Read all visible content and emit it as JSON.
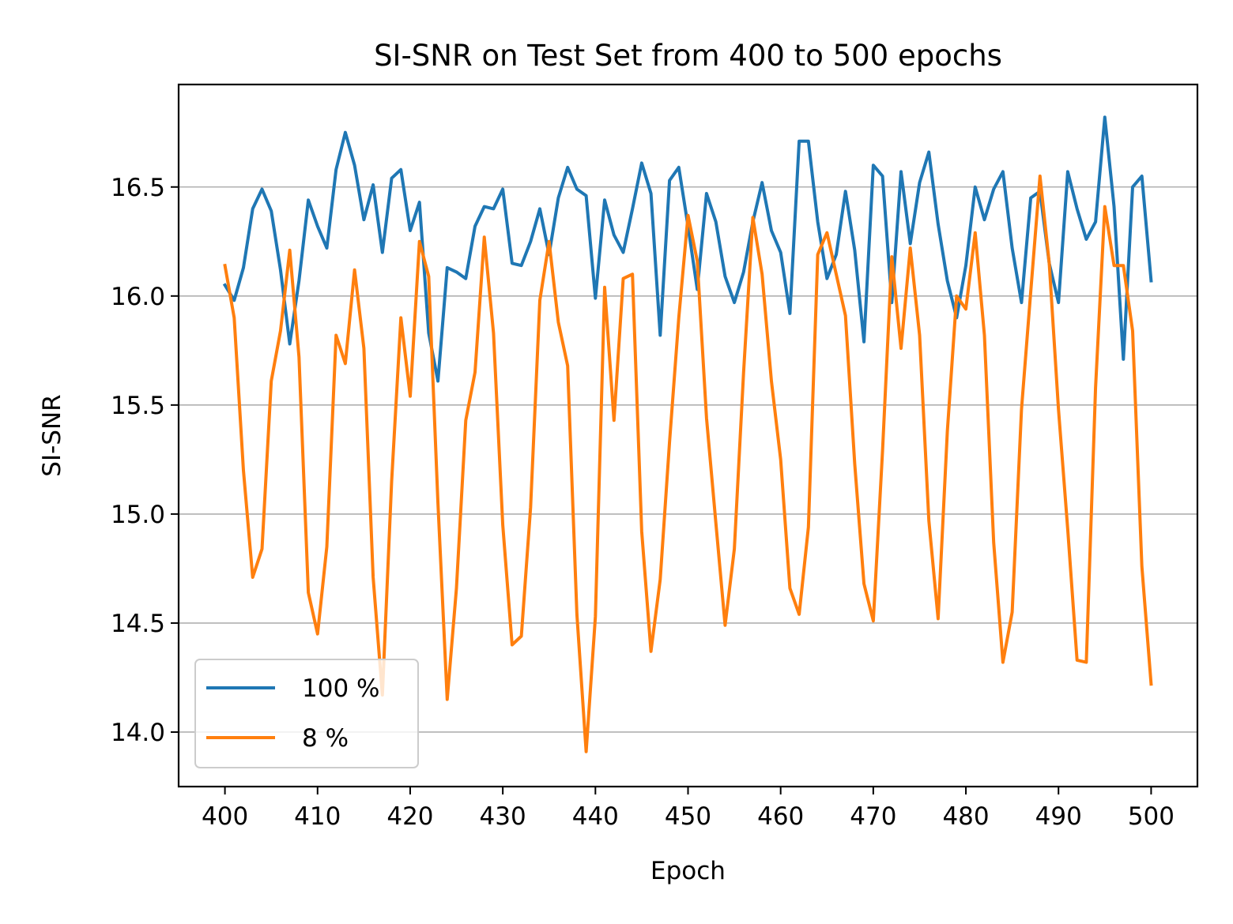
{
  "chart_data": {
    "type": "line",
    "title": "SI-SNR on Test Set from 400 to 500 epochs",
    "xlabel": "Epoch",
    "ylabel": "SI-SNR",
    "xlim": [
      395,
      505
    ],
    "ylim": [
      13.75,
      16.97
    ],
    "xticks": [
      400,
      410,
      420,
      430,
      440,
      450,
      460,
      470,
      480,
      490,
      500
    ],
    "yticks": [
      14.0,
      14.5,
      15.0,
      15.5,
      16.0,
      16.5
    ],
    "ytick_labels": [
      "14.0",
      "14.5",
      "15.0",
      "15.5",
      "16.0",
      "16.5"
    ],
    "grid": "y",
    "legend_position": "lower-left",
    "x_start": 400,
    "x_step": 1,
    "series": [
      {
        "name": "100 %",
        "color": "#1f77b4",
        "values": [
          16.05,
          15.98,
          16.13,
          16.4,
          16.49,
          16.39,
          16.12,
          15.78,
          16.07,
          16.44,
          16.32,
          16.22,
          16.58,
          16.75,
          16.6,
          16.35,
          16.51,
          16.2,
          16.54,
          16.58,
          16.3,
          16.43,
          15.83,
          15.61,
          16.13,
          16.11,
          16.08,
          16.32,
          16.41,
          16.4,
          16.49,
          16.15,
          16.14,
          16.25,
          16.4,
          16.19,
          16.45,
          16.59,
          16.49,
          16.46,
          15.99,
          16.44,
          16.28,
          16.2,
          16.4,
          16.61,
          16.47,
          15.82,
          16.53,
          16.59,
          16.32,
          16.03,
          16.47,
          16.34,
          16.09,
          15.97,
          16.11,
          16.34,
          16.52,
          16.3,
          16.2,
          15.92,
          16.71,
          16.71,
          16.34,
          16.08,
          16.19,
          16.48,
          16.21,
          15.79,
          16.6,
          16.55,
          15.97,
          16.57,
          16.24,
          16.52,
          16.66,
          16.33,
          16.07,
          15.9,
          16.14,
          16.5,
          16.35,
          16.49,
          16.57,
          16.22,
          15.97,
          16.45,
          16.48,
          16.15,
          15.97,
          16.57,
          16.4,
          16.26,
          16.34,
          16.82,
          16.41,
          15.71,
          16.5,
          16.55,
          16.07
        ]
      },
      {
        "name": "8 %",
        "color": "#ff7f0e",
        "values": [
          16.14,
          15.9,
          15.2,
          14.71,
          14.84,
          15.61,
          15.84,
          16.21,
          15.72,
          14.64,
          14.45,
          14.85,
          15.82,
          15.69,
          16.12,
          15.76,
          14.71,
          14.17,
          15.15,
          15.9,
          15.54,
          16.25,
          16.09,
          15.05,
          14.15,
          14.66,
          15.43,
          15.65,
          16.27,
          15.83,
          14.95,
          14.4,
          14.44,
          15.03,
          15.98,
          16.25,
          15.88,
          15.68,
          14.54,
          13.91,
          14.53,
          16.04,
          15.43,
          16.08,
          16.1,
          14.92,
          14.37,
          14.7,
          15.33,
          15.9,
          16.37,
          16.16,
          15.44,
          14.96,
          14.49,
          14.84,
          15.65,
          16.36,
          16.1,
          15.61,
          15.25,
          14.66,
          14.54,
          14.94,
          16.19,
          16.29,
          16.1,
          15.91,
          15.23,
          14.68,
          14.51,
          15.29,
          16.18,
          15.76,
          16.22,
          15.82,
          14.97,
          14.52,
          15.38,
          16.0,
          15.94,
          16.29,
          15.82,
          14.87,
          14.32,
          14.55,
          15.48,
          16.02,
          16.55,
          16.15,
          15.48,
          14.93,
          14.33,
          14.32,
          15.58,
          16.41,
          16.14,
          16.14,
          15.84,
          14.76,
          14.22
        ]
      }
    ]
  }
}
